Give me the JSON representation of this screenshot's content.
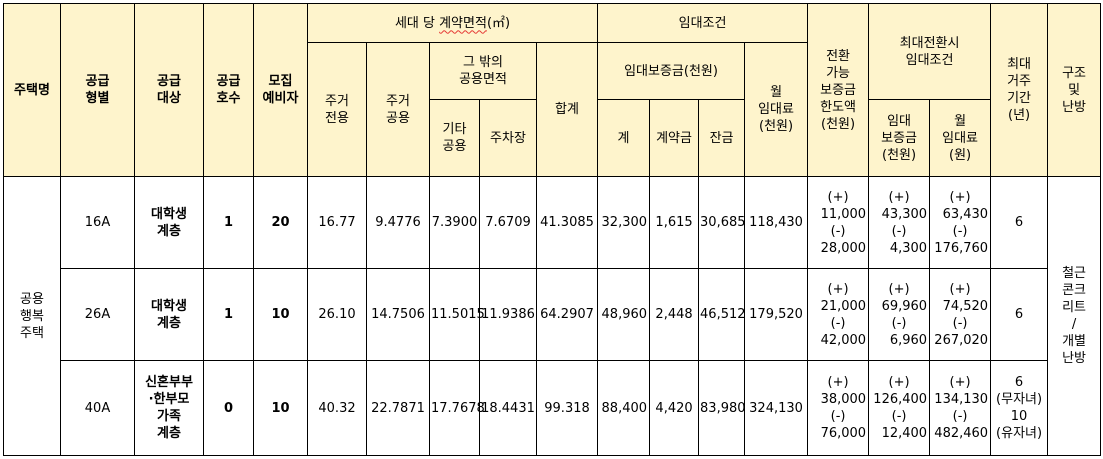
{
  "headers": {
    "housing_name": "주택명",
    "supply_type": "공급\n형별",
    "supply_target": "공급\n대상",
    "supply_units": "공급\n호수",
    "waitlist": "모집\n예비자",
    "area_group_prefix": "세대 당 ",
    "area_group_squiggle": "계약면적",
    "area_group_suffix": "(㎡)",
    "resident_exclusive": "주거\n전용",
    "resident_common": "주거\n공용",
    "other_common_group": "그 밖의\n공용면적",
    "other_common_etc": "기타\n공용",
    "parking": "주차장",
    "total_area": "합계",
    "rent_conditions": "임대조건",
    "deposit_group": "임대보증금(천원)",
    "deposit_total": "계",
    "contract_payment": "계약금",
    "balance": "잔금",
    "monthly_rent": "월\n임대료\n(천원)",
    "conversion_limit": "전환\n가능\n보증금\n한도액\n(천원)",
    "max_conversion_group": "최대전환시\n임대조건",
    "max_deposit": "임대\n보증금\n(천원)",
    "max_monthly_rent": "월\n임대료\n(원)",
    "max_residence": "최대\n거주\n기간\n(년)",
    "structure": "구조\n및\n난방"
  },
  "housing_name": "공용\n행복\n주택",
  "structure_value": "철근\n콘크\n리트\n/\n개별\n난방",
  "rows": [
    {
      "type": "16A",
      "target": "대학생\n계층",
      "units": "1",
      "waitlist": "20",
      "exclusive": "16.77",
      "common": "9.4776",
      "etc_common": "7.3900",
      "parking": "7.6709",
      "total": "41.3085",
      "deposit": "32,300",
      "contract": "1,615",
      "balance": "30,685",
      "rent": "118,430",
      "conv": [
        "(+)",
        "11,000",
        "(-)",
        "28,000"
      ],
      "max_dep": [
        "(+)",
        "43,300",
        "(-)",
        "4,300"
      ],
      "max_rent": [
        "(+)",
        "63,430",
        "(-)",
        "176,760"
      ],
      "period": "6"
    },
    {
      "type": "26A",
      "target": "대학생\n계층",
      "units": "1",
      "waitlist": "10",
      "exclusive": "26.10",
      "common": "14.7506",
      "etc_common": "11.5015",
      "parking": "11.9386",
      "total": "64.2907",
      "deposit": "48,960",
      "contract": "2,448",
      "balance": "46,512",
      "rent": "179,520",
      "conv": [
        "(+)",
        "21,000",
        "(-)",
        "42,000"
      ],
      "max_dep": [
        "(+)",
        "69,960",
        "(-)",
        "6,960"
      ],
      "max_rent": [
        "(+)",
        "74,520",
        "(-)",
        "267,020"
      ],
      "period": "6"
    },
    {
      "type": "40A",
      "target": "신혼부부\n·한부모\n가족\n계층",
      "units": "0",
      "waitlist": "10",
      "exclusive": "40.32",
      "common": "22.7871",
      "etc_common": "17.7678",
      "parking": "18.4431",
      "total": "99.318",
      "deposit": "88,400",
      "contract": "4,420",
      "balance": "83,980",
      "rent": "324,130",
      "conv": [
        "(+)",
        "38,000",
        "(-)",
        "76,000"
      ],
      "max_dep": [
        "(+)",
        "126,400",
        "(-)",
        "12,400"
      ],
      "max_rent": [
        "(+)",
        "134,130",
        "(-)",
        "482,460"
      ],
      "period": "6\n(무자녀)\n10\n(유자녀)"
    }
  ]
}
